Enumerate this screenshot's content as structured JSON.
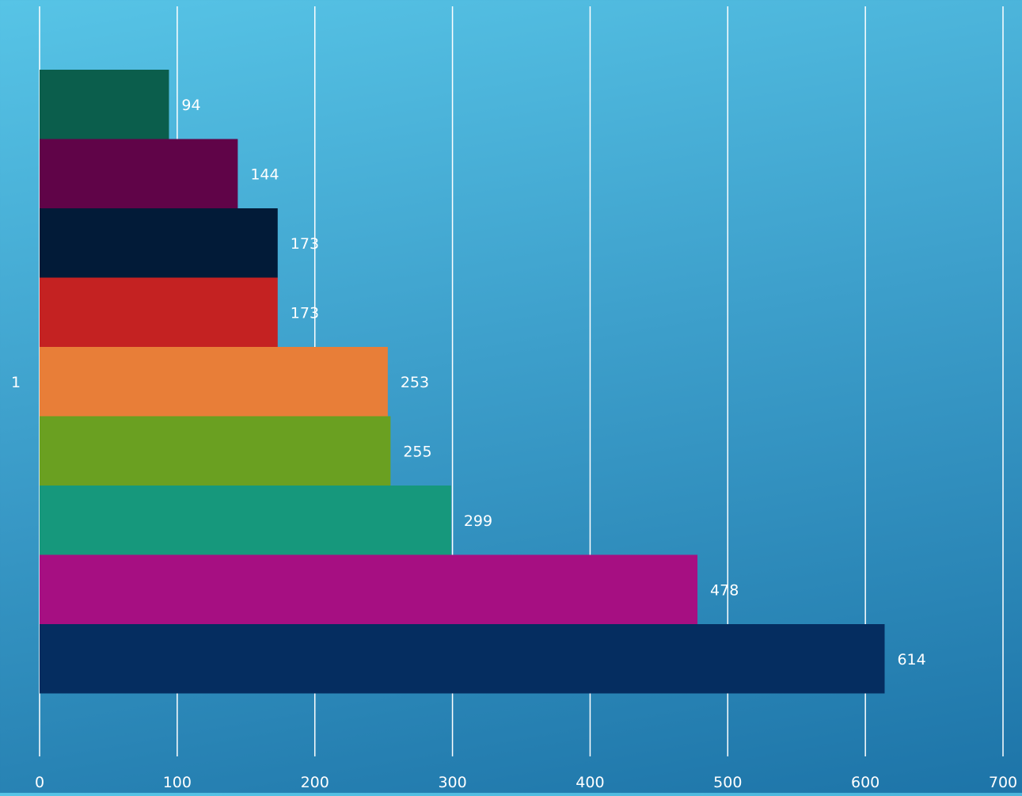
{
  "chart_data": {
    "type": "bar",
    "orientation": "horizontal",
    "categories": [
      "1"
    ],
    "series": [
      {
        "value": 94,
        "color": "#0b5e4c"
      },
      {
        "value": 144,
        "color": "#600448"
      },
      {
        "value": 173,
        "color": "#021b38"
      },
      {
        "value": 173,
        "color": "#c42222"
      },
      {
        "value": 253,
        "color": "#e87e38"
      },
      {
        "value": 255,
        "color": "#6aa021"
      },
      {
        "value": 299,
        "color": "#16987c"
      },
      {
        "value": 478,
        "color": "#a60f82"
      },
      {
        "value": 614,
        "color": "#052d60"
      }
    ],
    "xlim": [
      0,
      700
    ],
    "x_ticks": [
      "0",
      "100",
      "200",
      "300",
      "400",
      "500",
      "600",
      "700"
    ],
    "grid": true,
    "data_labels": true,
    "title": "",
    "xlabel": "",
    "ylabel": ""
  }
}
